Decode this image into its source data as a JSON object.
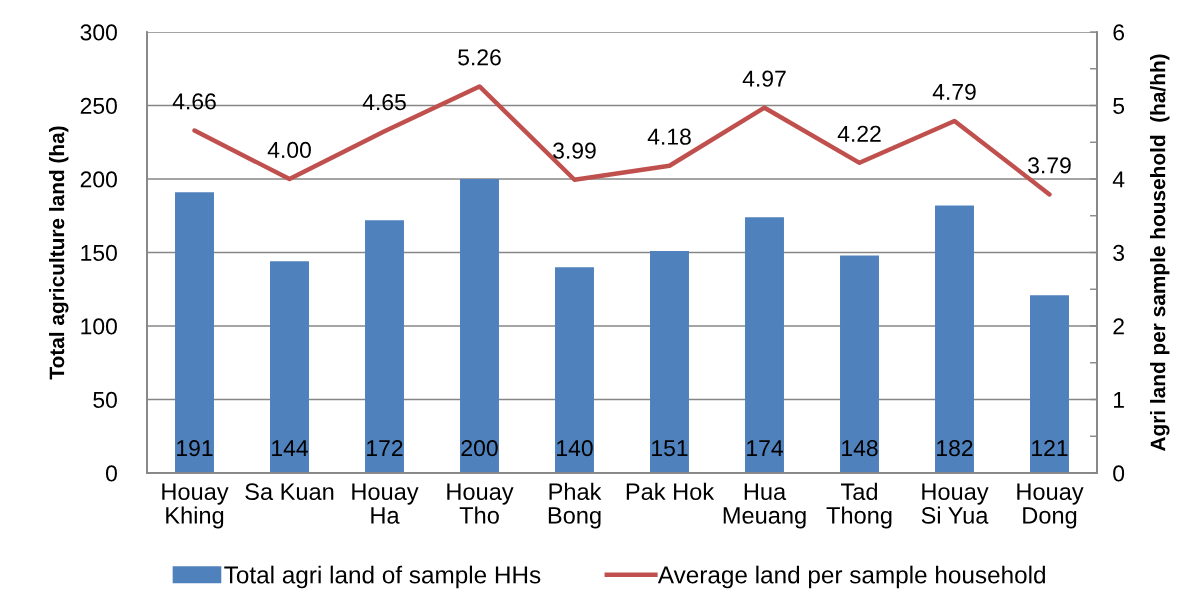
{
  "chart_data": {
    "type": "bar",
    "categories": [
      "Houay\nKhing",
      "Sa Kuan",
      "Houay\nHa",
      "Houay\nTho",
      "Phak\nBong",
      "Pak Hok",
      "Hua\nMeuang",
      "Tad\nThong",
      "Houay\nSi Yua",
      "Houay\nDong"
    ],
    "series": [
      {
        "name": "Total agri land of sample HHs",
        "color": "#4f81bd",
        "values": [
          191,
          144,
          172,
          200,
          140,
          151,
          174,
          148,
          182,
          121
        ],
        "value_labels": [
          "191",
          "144",
          "172",
          "200",
          "140",
          "151",
          "174",
          "148",
          "182",
          "121"
        ]
      },
      {
        "name": "Average land per sample household",
        "type": "line",
        "axis": "y2",
        "color": "#c0504d",
        "values": [
          4.66,
          4.0,
          4.65,
          5.26,
          3.99,
          4.18,
          4.97,
          4.22,
          4.79,
          3.79
        ],
        "value_labels": [
          "4.66",
          "4.00",
          "4.65",
          "5.26",
          "3.99",
          "4.18",
          "4.97",
          "4.22",
          "4.79",
          "3.79"
        ]
      }
    ],
    "ylabel": "Total agriculture land (ha)",
    "y2label": "Agri land per sample household  (ha/hh)",
    "ylim": [
      0,
      300
    ],
    "yticks": [
      0,
      50,
      100,
      150,
      200,
      250,
      300
    ],
    "y2lim": [
      0,
      6
    ],
    "y2ticks": [
      0,
      {
        "value": 0.5,
        "label": null
      },
      1,
      {
        "value": 1.5,
        "label": null
      },
      2,
      {
        "value": 2.5,
        "label": null
      },
      3,
      {
        "value": 3.5,
        "label": null
      },
      4,
      {
        "value": 4.5,
        "label": null
      },
      5,
      {
        "value": 5.5,
        "label": null
      },
      6
    ],
    "grid": "y",
    "legend": "bottom",
    "line_style": "solid"
  }
}
